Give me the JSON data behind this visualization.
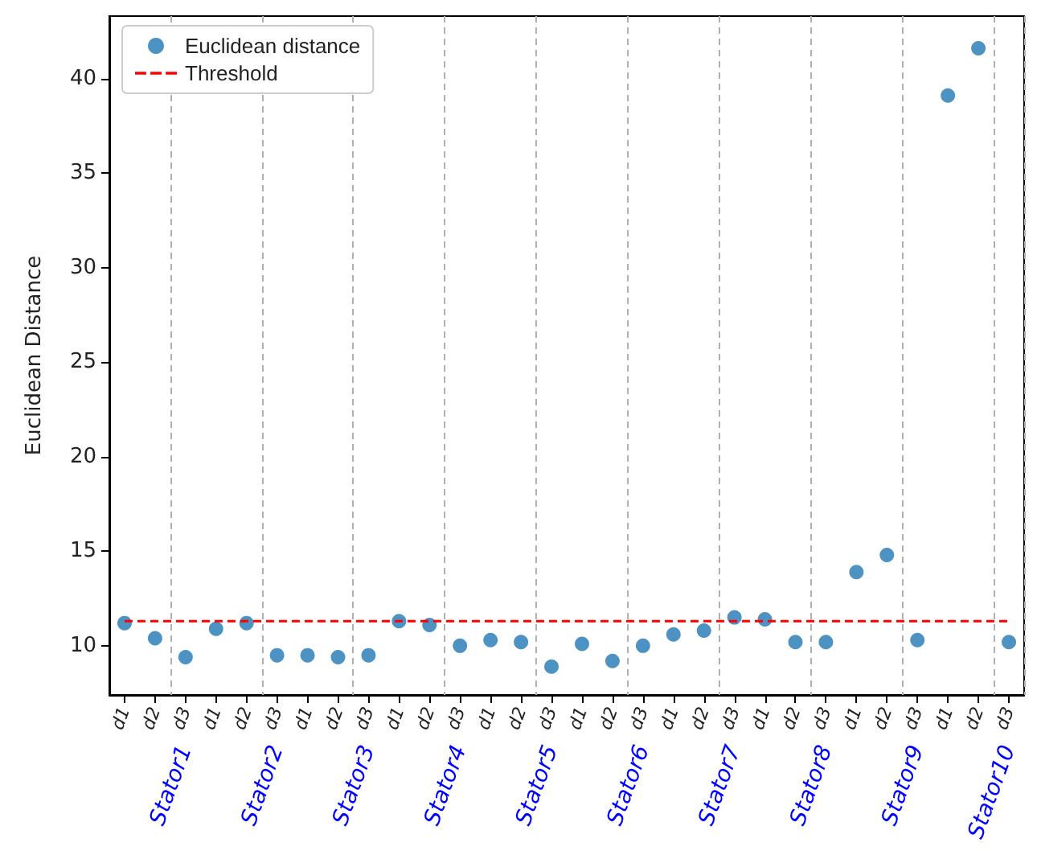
{
  "chart_data": {
    "type": "scatter",
    "ylabel": "Euclidean Distance",
    "categories": [
      "d1",
      "d2",
      "d3",
      "d1",
      "d2",
      "d3",
      "d1",
      "d2",
      "d3",
      "d1",
      "d2",
      "d3",
      "d1",
      "d2",
      "d3",
      "d1",
      "d2",
      "d3",
      "d1",
      "d2",
      "d3",
      "d1",
      "d2",
      "d3",
      "d1",
      "d2",
      "d3",
      "d1",
      "d2",
      "d3"
    ],
    "series": [
      {
        "name": "Euclidean distance",
        "color": "#1f77b4",
        "marker": "circle",
        "values": [
          11.2,
          10.4,
          9.4,
          10.9,
          11.2,
          9.5,
          9.5,
          9.4,
          9.5,
          11.3,
          11.1,
          10.0,
          10.3,
          10.2,
          8.9,
          10.1,
          9.2,
          10.0,
          10.6,
          10.8,
          11.5,
          11.4,
          10.2,
          10.2,
          13.9,
          14.8,
          10.3,
          39.1,
          41.6,
          10.2
        ]
      },
      {
        "name": "Threshold",
        "type": "line",
        "color": "#ff0000",
        "marker": "none",
        "line_style": "dashed",
        "values": [
          11.3,
          11.3,
          11.3,
          11.3,
          11.3,
          11.3,
          11.3,
          11.3,
          11.3,
          11.3,
          11.3,
          11.3,
          11.3,
          11.3,
          11.3,
          11.3,
          11.3,
          11.3,
          11.3,
          11.3,
          11.3,
          11.3,
          11.3,
          11.3,
          11.3,
          11.3,
          11.3,
          11.3,
          11.3,
          11.3
        ]
      }
    ],
    "annotations": [
      "Stator1",
      "Stator2",
      "Stator3",
      "Stator4",
      "Stator5",
      "Stator6",
      "Stator7",
      "Stator8",
      "Stator9",
      "Stator10"
    ],
    "ylim": [
      7.4,
      43.3
    ],
    "yticks": [
      10,
      15,
      20,
      25,
      30,
      35,
      40
    ],
    "grid": "x",
    "legend": "top left"
  }
}
